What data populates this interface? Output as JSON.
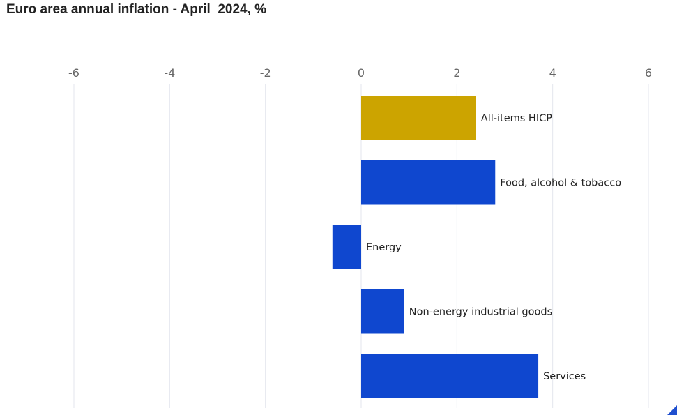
{
  "chart_data": {
    "type": "bar",
    "orientation": "horizontal",
    "title": "Euro area annual inflation - April  2024, %",
    "xlabel": "",
    "ylabel": "",
    "xlim": [
      -6,
      6
    ],
    "x_ticks": [
      "-6",
      "-4",
      "-2",
      "0",
      "2",
      "4",
      "6"
    ],
    "x_axis_position": "top",
    "grid": true,
    "legend": "none",
    "categories": [
      "All-items HICP",
      "Food, alcohol & tobacco",
      "Energy",
      "Non-energy industrial goods",
      "Services"
    ],
    "values": [
      2.4,
      2.8,
      -0.6,
      0.9,
      3.7
    ],
    "colors": [
      "#cca400",
      "#0f47cf",
      "#0f47cf",
      "#0f47cf",
      "#0f47cf"
    ]
  }
}
